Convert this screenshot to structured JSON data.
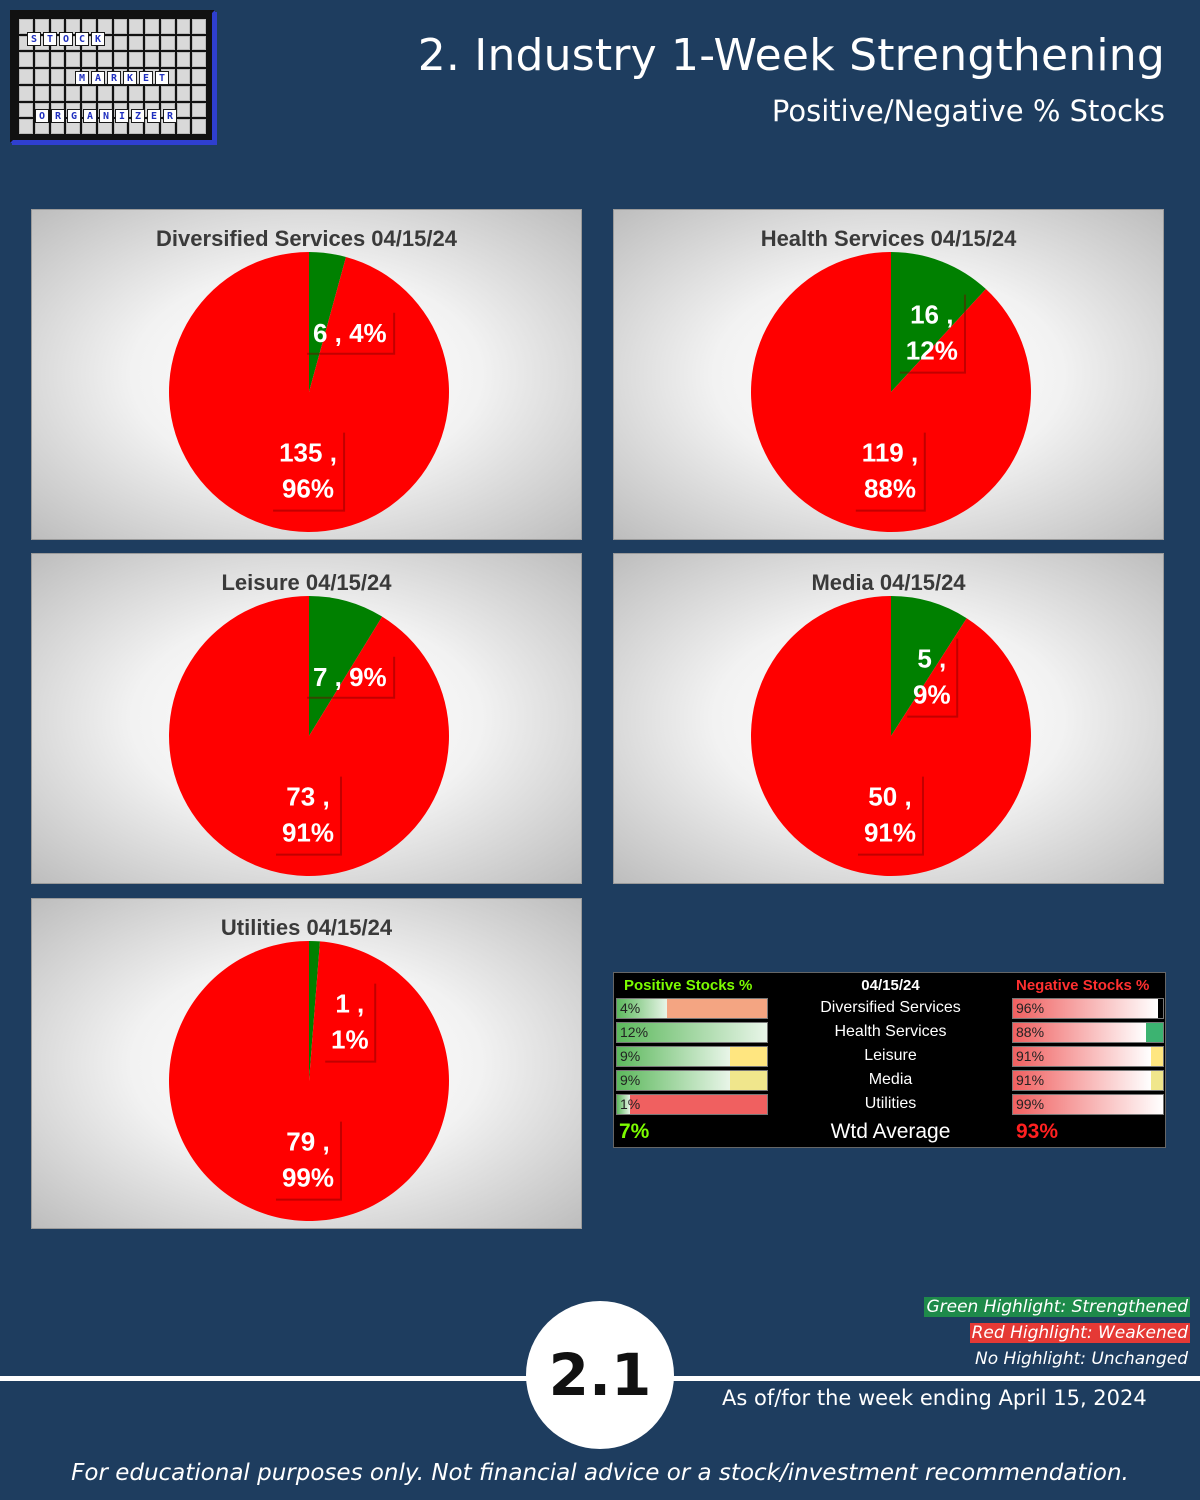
{
  "header": {
    "title": "2. Industry 1-Week Strengthening",
    "subtitle": "Positive/Negative % Stocks"
  },
  "logo": {
    "words": [
      "STOCK",
      "MARKET",
      "ORGANIZER"
    ]
  },
  "colors": {
    "background": "#1e3d5f",
    "positive": "#008000",
    "negative": "#ff0000"
  },
  "chart_data": [
    {
      "type": "pie",
      "title": "Diversified Services 04/15/24",
      "slices": [
        {
          "name": "Positive",
          "value": 6,
          "label_line1": "6 , 4%",
          "label_line2": ""
        },
        {
          "name": "Negative",
          "value": 135,
          "label_line1": "135 ,",
          "label_line2": "96%"
        }
      ]
    },
    {
      "type": "pie",
      "title": "Health Services 04/15/24",
      "slices": [
        {
          "name": "Positive",
          "value": 16,
          "label_line1": "16 ,",
          "label_line2": "12%"
        },
        {
          "name": "Negative",
          "value": 119,
          "label_line1": "119 ,",
          "label_line2": "88%"
        }
      ]
    },
    {
      "type": "pie",
      "title": "Leisure 04/15/24",
      "slices": [
        {
          "name": "Positive",
          "value": 7,
          "label_line1": "7 , 9%",
          "label_line2": ""
        },
        {
          "name": "Negative",
          "value": 73,
          "label_line1": "73 ,",
          "label_line2": "91%"
        }
      ]
    },
    {
      "type": "pie",
      "title": "Media 04/15/24",
      "slices": [
        {
          "name": "Positive",
          "value": 5,
          "label_line1": "5 ,",
          "label_line2": "9%"
        },
        {
          "name": "Negative",
          "value": 50,
          "label_line1": "50 ,",
          "label_line2": "91%"
        }
      ]
    },
    {
      "type": "pie",
      "title": "Utilities 04/15/24",
      "slices": [
        {
          "name": "Positive",
          "value": 1,
          "label_line1": "1 ,",
          "label_line2": "1%"
        },
        {
          "name": "Negative",
          "value": 79,
          "label_line1": "79 ,",
          "label_line2": "99%"
        }
      ]
    }
  ],
  "summary": {
    "pos_header": "Positive Stocks %",
    "date_header": "04/15/24",
    "neg_header": "Negative Stocks %",
    "rows": [
      {
        "industry": "Diversified Services",
        "pos": 4,
        "pos_label": "4%",
        "neg": 96,
        "neg_label": "96%",
        "pos_bg": "#f4a582",
        "neg_bg": "#000000"
      },
      {
        "industry": "Health Services",
        "pos": 12,
        "pos_label": "12%",
        "neg": 88,
        "neg_label": "88%",
        "pos_bg": "#ffffff",
        "neg_bg": "#3cb371"
      },
      {
        "industry": "Leisure",
        "pos": 9,
        "pos_label": "9%",
        "neg": 91,
        "neg_label": "91%",
        "pos_bg": "#ffe680",
        "neg_bg": "#ffe680"
      },
      {
        "industry": "Media",
        "pos": 9,
        "pos_label": "9%",
        "neg": 91,
        "neg_label": "91%",
        "pos_bg": "#f0e68c",
        "neg_bg": "#f0e68c"
      },
      {
        "industry": "Utilities",
        "pos": 1,
        "pos_label": "1%",
        "neg": 99,
        "neg_label": "99%",
        "pos_bg": "#f06060",
        "neg_bg": "#000000"
      }
    ],
    "avg_label": "Wtd Average",
    "avg_pos": "7%",
    "avg_neg": "93%"
  },
  "legend": {
    "green": "Green Highlight: Strengthened",
    "red": "Red Highlight: Weakened",
    "none": "No Highlight: Unchanged"
  },
  "footer": {
    "badge": "2.1",
    "as_of": "As of/for the week ending April 15, 2024",
    "disclaimer": "For educational purposes only. Not financial advice or a stock/investment recommendation."
  }
}
